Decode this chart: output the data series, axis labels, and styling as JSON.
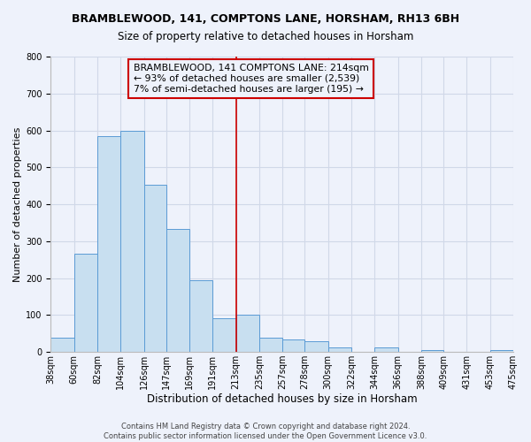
{
  "title": "BRAMBLEWOOD, 141, COMPTONS LANE, HORSHAM, RH13 6BH",
  "subtitle": "Size of property relative to detached houses in Horsham",
  "xlabel": "Distribution of detached houses by size in Horsham",
  "ylabel": "Number of detached properties",
  "bar_left_edges": [
    38,
    60,
    82,
    104,
    126,
    147,
    169,
    191,
    213,
    235,
    257,
    278,
    300,
    322,
    344,
    366,
    388,
    409,
    431,
    453
  ],
  "bar_heights": [
    38,
    265,
    585,
    600,
    453,
    333,
    195,
    90,
    100,
    38,
    33,
    30,
    12,
    0,
    12,
    0,
    5,
    0,
    0,
    5
  ],
  "bar_widths": [
    22,
    22,
    22,
    22,
    21,
    22,
    22,
    22,
    22,
    22,
    21,
    22,
    22,
    22,
    22,
    22,
    21,
    22,
    22,
    22
  ],
  "tick_labels": [
    "38sqm",
    "60sqm",
    "82sqm",
    "104sqm",
    "126sqm",
    "147sqm",
    "169sqm",
    "191sqm",
    "213sqm",
    "235sqm",
    "257sqm",
    "278sqm",
    "300sqm",
    "322sqm",
    "344sqm",
    "366sqm",
    "388sqm",
    "409sqm",
    "431sqm",
    "453sqm",
    "475sqm"
  ],
  "bar_color": "#c8dff0",
  "bar_edge_color": "#5b9bd5",
  "vline_x": 213,
  "vline_color": "#cc0000",
  "annotation_line1": "BRAMBLEWOOD, 141 COMPTONS LANE: 214sqm",
  "annotation_line2": "← 93% of detached houses are smaller (2,539)",
  "annotation_line3": "7% of semi-detached houses are larger (195) →",
  "annotation_box_color": "#cc0000",
  "ylim": [
    0,
    800
  ],
  "yticks": [
    0,
    100,
    200,
    300,
    400,
    500,
    600,
    700,
    800
  ],
  "grid_color": "#d0d8e8",
  "bg_color": "#eef2fb",
  "footer1": "Contains HM Land Registry data © Crown copyright and database right 2024.",
  "footer2": "Contains public sector information licensed under the Open Government Licence v3.0.",
  "title_fontsize": 9,
  "subtitle_fontsize": 8.5,
  "xlabel_fontsize": 8.5,
  "ylabel_fontsize": 8,
  "tick_fontsize": 7,
  "annotation_fontsize": 7.8,
  "footer_fontsize": 6
}
